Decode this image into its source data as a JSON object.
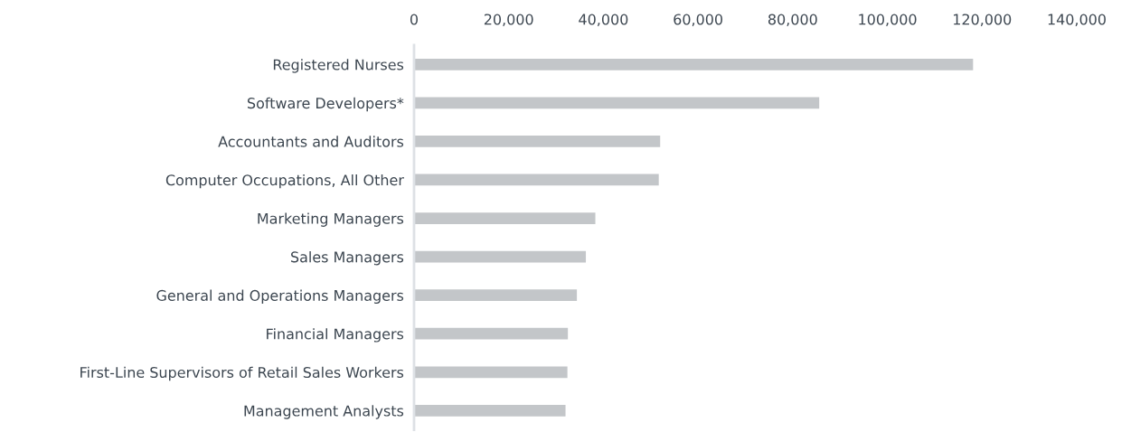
{
  "chart_data": {
    "type": "bar",
    "orientation": "horizontal",
    "categories": [
      "Registered Nurses",
      "Software Developers*",
      "Accountants and Auditors",
      "Computer Occupations, All Other",
      "Marketing Managers",
      "Sales Managers",
      "General and Operations Managers",
      "Financial Managers",
      "First-Line Supervisors of Retail Sales Workers",
      "Management Analysts"
    ],
    "values": [
      118100,
      85600,
      52000,
      51700,
      38300,
      36300,
      34400,
      32500,
      32400,
      32000
    ],
    "color": "#c3c6c9",
    "xlim": [
      0,
      140000
    ],
    "xticks": [
      {
        "value": 0,
        "label": "0"
      },
      {
        "value": 20000,
        "label": "20,000"
      },
      {
        "value": 40000,
        "label": "40,000"
      },
      {
        "value": 60000,
        "label": "60,000"
      },
      {
        "value": 80000,
        "label": "80,000"
      },
      {
        "value": 100000,
        "label": "100,000"
      },
      {
        "value": 120000,
        "label": "120,000"
      },
      {
        "value": 140000,
        "label": "140,000"
      }
    ],
    "grid": false,
    "legend": false
  }
}
